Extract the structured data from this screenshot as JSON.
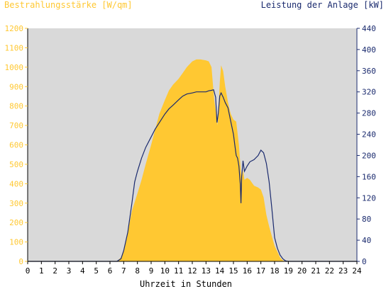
{
  "chart_data": {
    "type": "area",
    "left_axis_label": "Bestrahlungsstärke [W/qm]",
    "right_axis_label": "Leistung der Anlage [kW]",
    "xlabel": "Uhrzeit in Stunden",
    "x_ticks": [
      "0",
      "1",
      "2",
      "3",
      "4",
      "5",
      "6",
      "7",
      "8",
      "9",
      "10",
      "11",
      "12",
      "13",
      "14",
      "15",
      "16",
      "17",
      "18",
      "19",
      "20",
      "21",
      "22",
      "23",
      "24"
    ],
    "y_left_ticks": [
      "0",
      "100",
      "200",
      "300",
      "400",
      "500",
      "600",
      "700",
      "800",
      "900",
      "1000",
      "1100",
      "1200"
    ],
    "y_right_ticks": [
      "0",
      "40",
      "80",
      "120",
      "160",
      "200",
      "240",
      "280",
      "320",
      "360",
      "400",
      "440"
    ],
    "xlim": [
      0,
      24
    ],
    "ylim_left": [
      0,
      1200
    ],
    "ylim_right": [
      0,
      440
    ],
    "colors": {
      "irradiance": "#ffc832",
      "power": "#1a2a6e",
      "left_axis": "#ffc832",
      "right_axis": "#1a2a6e",
      "plot_bg": "#d9d9d9"
    },
    "series": [
      {
        "axis": "left",
        "style": "filled-area",
        "x": [
          0,
          6.5,
          6.8,
          7.0,
          7.3,
          7.6,
          8.0,
          8.3,
          8.6,
          9.0,
          9.3,
          9.6,
          10.0,
          10.3,
          10.6,
          11.0,
          11.3,
          11.6,
          12.0,
          12.3,
          12.6,
          13.0,
          13.2,
          13.4,
          13.6,
          13.75,
          13.85,
          14.0,
          14.1,
          14.25,
          14.4,
          14.6,
          14.8,
          15.0,
          15.2,
          15.4,
          15.5,
          15.6,
          15.7,
          15.8,
          16.0,
          16.2,
          16.5,
          16.8,
          17.0,
          17.2,
          17.4,
          17.6,
          17.8,
          18.0,
          18.2,
          18.4,
          18.6,
          18.8,
          19.0,
          24
        ],
        "y": [
          0,
          0,
          20,
          60,
          150,
          260,
          350,
          420,
          500,
          600,
          680,
          760,
          830,
          880,
          910,
          940,
          970,
          1000,
          1030,
          1040,
          1040,
          1035,
          1030,
          1000,
          830,
          760,
          700,
          920,
          1010,
          980,
          900,
          820,
          760,
          730,
          720,
          600,
          500,
          420,
          470,
          420,
          430,
          420,
          390,
          380,
          370,
          330,
          240,
          180,
          130,
          80,
          50,
          20,
          5,
          0,
          0,
          0
        ]
      },
      {
        "axis": "right",
        "style": "line",
        "x": [
          0,
          6.5,
          6.8,
          7.0,
          7.3,
          7.6,
          7.8,
          8.0,
          8.3,
          8.6,
          9.0,
          9.3,
          9.6,
          10.0,
          10.3,
          10.6,
          11.0,
          11.3,
          11.6,
          12.0,
          12.3,
          12.6,
          13.0,
          13.2,
          13.4,
          13.55,
          13.7,
          13.8,
          13.9,
          14.0,
          14.1,
          14.25,
          14.4,
          14.6,
          14.8,
          15.0,
          15.1,
          15.2,
          15.3,
          15.4,
          15.5,
          15.55,
          15.6,
          15.7,
          15.8,
          16.0,
          16.2,
          16.5,
          16.8,
          17.0,
          17.2,
          17.4,
          17.6,
          17.8,
          18.0,
          18.2,
          18.4,
          18.6,
          18.8,
          19.0,
          24
        ],
        "y": [
          0,
          0,
          5,
          20,
          55,
          110,
          150,
          170,
          195,
          215,
          235,
          250,
          262,
          278,
          288,
          295,
          305,
          312,
          316,
          318,
          320,
          320,
          320,
          322,
          323,
          324,
          310,
          262,
          280,
          312,
          318,
          310,
          300,
          290,
          265,
          240,
          220,
          200,
          195,
          180,
          145,
          110,
          160,
          190,
          170,
          180,
          188,
          192,
          200,
          210,
          205,
          185,
          150,
          100,
          45,
          25,
          12,
          5,
          1,
          0,
          0
        ]
      }
    ]
  }
}
